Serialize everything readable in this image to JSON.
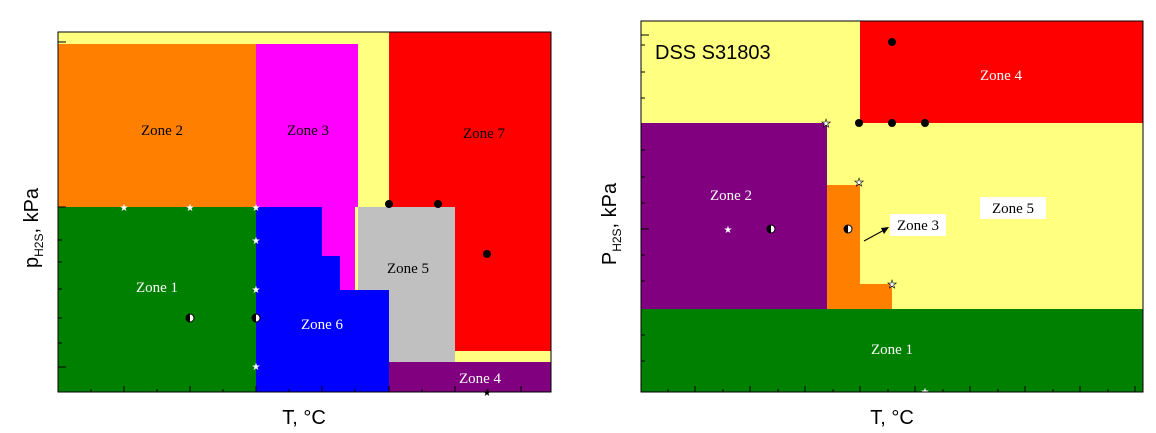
{
  "chart_data": [
    {
      "type": "area",
      "title": "",
      "xlabel": "T, °C",
      "ylabel_main": "p",
      "ylabel_sub": "H2S",
      "ylabel_rest": ", kPa",
      "zones": [
        {
          "name": "Zone 1",
          "color": "#008000",
          "label_color": "#ffffff"
        },
        {
          "name": "Zone 2",
          "color": "#ff8000",
          "label_color": "#000000"
        },
        {
          "name": "Zone 3",
          "color": "#ff00ff",
          "label_color": "#000000"
        },
        {
          "name": "Zone 4",
          "color": "#800080",
          "label_color": "#ffffff"
        },
        {
          "name": "Zone 5",
          "color": "#c0c0c0",
          "label_color": "#000000"
        },
        {
          "name": "Zone 6",
          "color": "#0000ff",
          "label_color": "#ffffff"
        },
        {
          "name": "Zone 7",
          "color": "#ff0000",
          "label_color": "#000000"
        }
      ],
      "background_color": "#ffff80"
    },
    {
      "type": "area",
      "title": "DSS S31803",
      "xlabel": "T, °C",
      "ylabel_main": "P",
      "ylabel_sub": "H2S",
      "ylabel_rest": ", kPa",
      "zones": [
        {
          "name": "Zone 1",
          "color": "#008000",
          "label_color": "#ffffff"
        },
        {
          "name": "Zone 2",
          "color": "#800080",
          "label_color": "#ffffff"
        },
        {
          "name": "Zone 3",
          "color": "#ff8000",
          "label_color": "#000000"
        },
        {
          "name": "Zone 4",
          "color": "#ff0000",
          "label_color": "#ffffff"
        },
        {
          "name": "Zone 5",
          "color": "#ffff80",
          "label_color": "#000000"
        }
      ],
      "background_color": "#ffff80"
    }
  ]
}
